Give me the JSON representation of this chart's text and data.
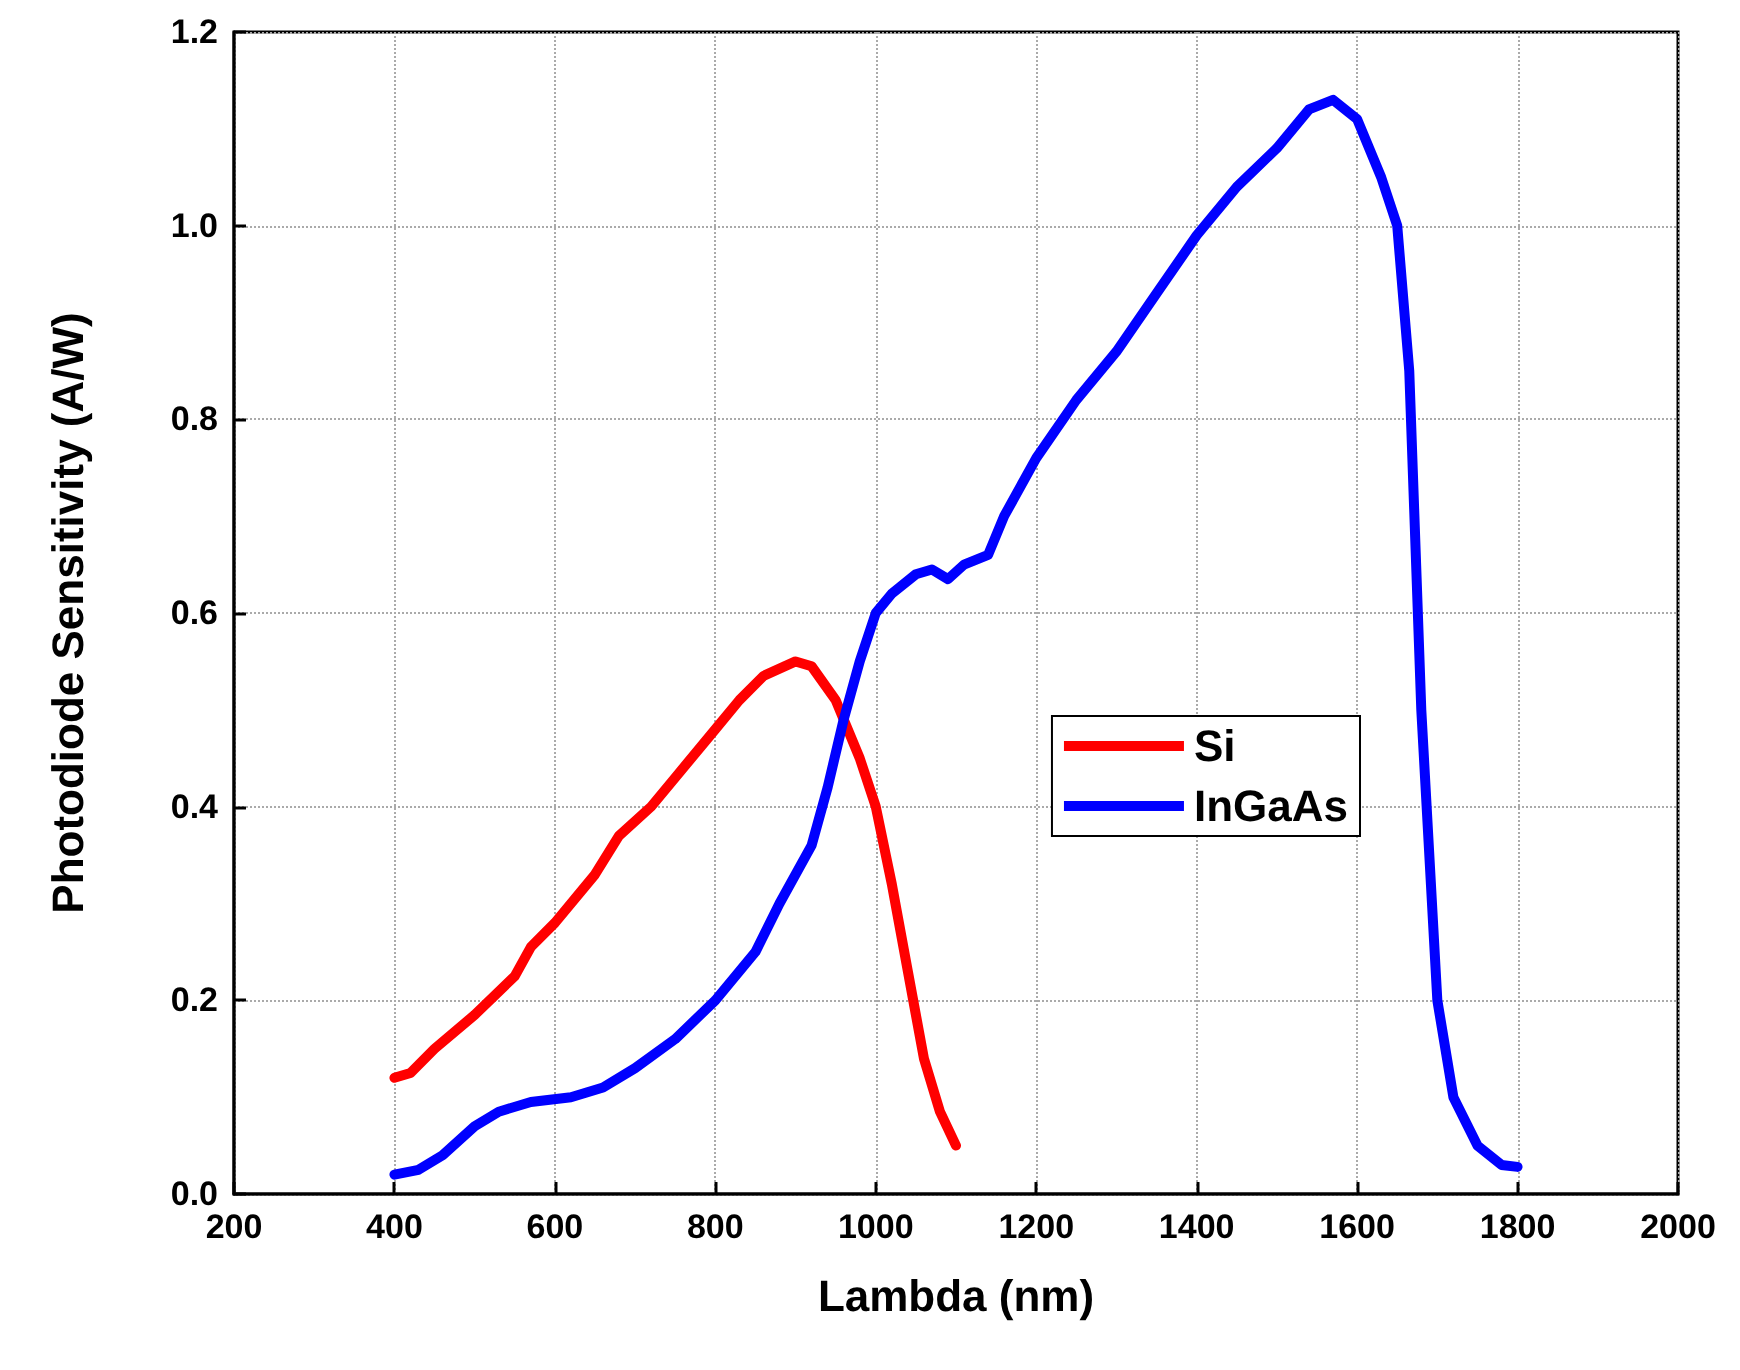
{
  "chart_data": {
    "type": "line",
    "xlabel": "Lambda (nm)",
    "ylabel": "Photodiode Sensitivity (A/W)",
    "xlim": [
      200,
      2000
    ],
    "xticks": [
      200,
      400,
      600,
      800,
      1000,
      1200,
      1400,
      1600,
      1800,
      2000
    ],
    "ylim": [
      0,
      1.2
    ],
    "yticks": [
      {
        "value": 0,
        "label": "0.0"
      },
      {
        "value": 0.2,
        "label": "0.2"
      },
      {
        "value": 0.4,
        "label": "0.4"
      },
      {
        "value": 0.6,
        "label": "0.6"
      },
      {
        "value": 0.8,
        "label": "0.8"
      },
      {
        "value": 1.0,
        "label": "1.0"
      },
      {
        "value": 1.2,
        "label": "1.2"
      }
    ],
    "grid": true,
    "legend": "right",
    "marker": "none",
    "line_style": "solid",
    "series": [
      {
        "name": "Si",
        "color": "#ff0000",
        "x": [
          400,
          420,
          450,
          500,
          550,
          570,
          600,
          650,
          680,
          720,
          750,
          800,
          830,
          860,
          900,
          920,
          950,
          980,
          1000,
          1020,
          1040,
          1060,
          1080,
          1100
        ],
        "values": [
          0.12,
          0.125,
          0.15,
          0.185,
          0.225,
          0.255,
          0.28,
          0.33,
          0.37,
          0.4,
          0.43,
          0.48,
          0.51,
          0.535,
          0.55,
          0.545,
          0.51,
          0.45,
          0.4,
          0.32,
          0.23,
          0.14,
          0.085,
          0.05
        ]
      },
      {
        "name": "InGaAs",
        "color": "#0000ff",
        "x": [
          400,
          430,
          460,
          500,
          530,
          570,
          620,
          660,
          700,
          750,
          800,
          850,
          880,
          920,
          940,
          960,
          980,
          1000,
          1020,
          1050,
          1070,
          1090,
          1110,
          1140,
          1160,
          1200,
          1250,
          1300,
          1350,
          1400,
          1450,
          1500,
          1540,
          1570,
          1600,
          1630,
          1650,
          1665,
          1680,
          1700,
          1720,
          1750,
          1780,
          1800
        ],
        "values": [
          0.02,
          0.025,
          0.04,
          0.07,
          0.085,
          0.095,
          0.1,
          0.11,
          0.13,
          0.16,
          0.2,
          0.25,
          0.3,
          0.36,
          0.42,
          0.49,
          0.55,
          0.6,
          0.62,
          0.64,
          0.645,
          0.635,
          0.65,
          0.66,
          0.7,
          0.76,
          0.82,
          0.87,
          0.93,
          0.99,
          1.04,
          1.08,
          1.12,
          1.13,
          1.11,
          1.05,
          1.0,
          0.85,
          0.5,
          0.2,
          0.1,
          0.05,
          0.03,
          0.028
        ]
      }
    ]
  }
}
